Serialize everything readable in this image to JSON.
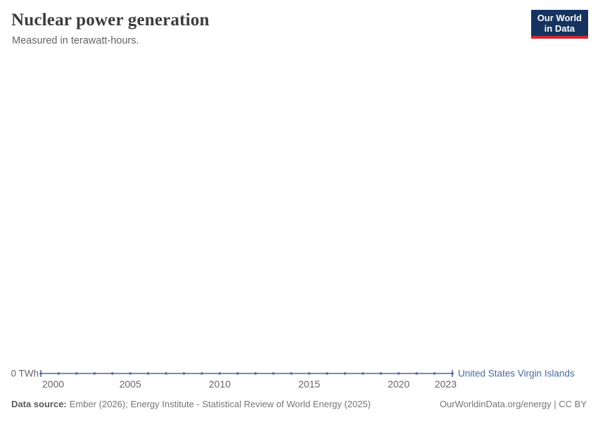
{
  "chart_data": {
    "type": "line",
    "title": "Nuclear power generation",
    "subtitle": "Measured in terawatt-hours.",
    "unit": "TWh",
    "x": [
      2000,
      2001,
      2002,
      2003,
      2004,
      2005,
      2006,
      2007,
      2008,
      2009,
      2010,
      2011,
      2012,
      2013,
      2014,
      2015,
      2016,
      2017,
      2018,
      2019,
      2020,
      2021,
      2022,
      2023
    ],
    "series": [
      {
        "name": "United States Virgin Islands",
        "color": "#4C6A9C",
        "values": [
          0,
          0,
          0,
          0,
          0,
          0,
          0,
          0,
          0,
          0,
          0,
          0,
          0,
          0,
          0,
          0,
          0,
          0,
          0,
          0,
          0,
          0,
          0,
          0
        ]
      }
    ],
    "x_ticks": [
      2000,
      2005,
      2010,
      2015,
      2020,
      2023
    ],
    "y_ticks": [
      {
        "value": 0,
        "label": "0 TWh"
      }
    ],
    "ylim": [
      0,
      0
    ],
    "grid": false,
    "legend_position": "end-of-line-label",
    "marker_style": "dots-every-year"
  },
  "logo": {
    "line1": "Our World",
    "line2": "in Data",
    "bg_color": "#15335e",
    "accent_color": "#d12733",
    "text_color": "#ffffff"
  },
  "footer": {
    "source_label": "Data source:",
    "source_text": "Ember (2026); Energy Institute - Statistical Review of World Energy (2025)",
    "rights_text": "OurWorldinData.org/energy | CC BY"
  },
  "colors": {
    "series_blue": "#4C6A9C",
    "axis_text": "#666666",
    "title_text": "#3d3d3d",
    "subtitle_text": "#646464",
    "footer_text": "#757575"
  }
}
